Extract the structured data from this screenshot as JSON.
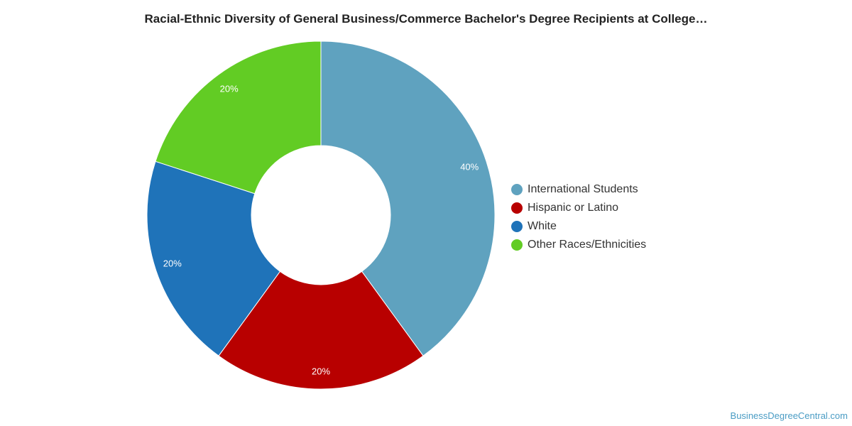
{
  "chart_data": {
    "type": "pie",
    "donut": true,
    "title": "Racial-Ethnic Diversity of General Business/Commerce Bachelor's Degree Recipients at College…",
    "categories": [
      "International Students",
      "Hispanic or Latino",
      "White",
      "Other Races/Ethnicities"
    ],
    "values": [
      40,
      20,
      20,
      20
    ],
    "labels": [
      "40%",
      "20%",
      "20%",
      "20%"
    ],
    "colors": [
      "#5fa2bf",
      "#b80000",
      "#1f73b9",
      "#62cc24"
    ],
    "legend_position": "right"
  },
  "watermark": "BusinessDegreeCentral.com"
}
